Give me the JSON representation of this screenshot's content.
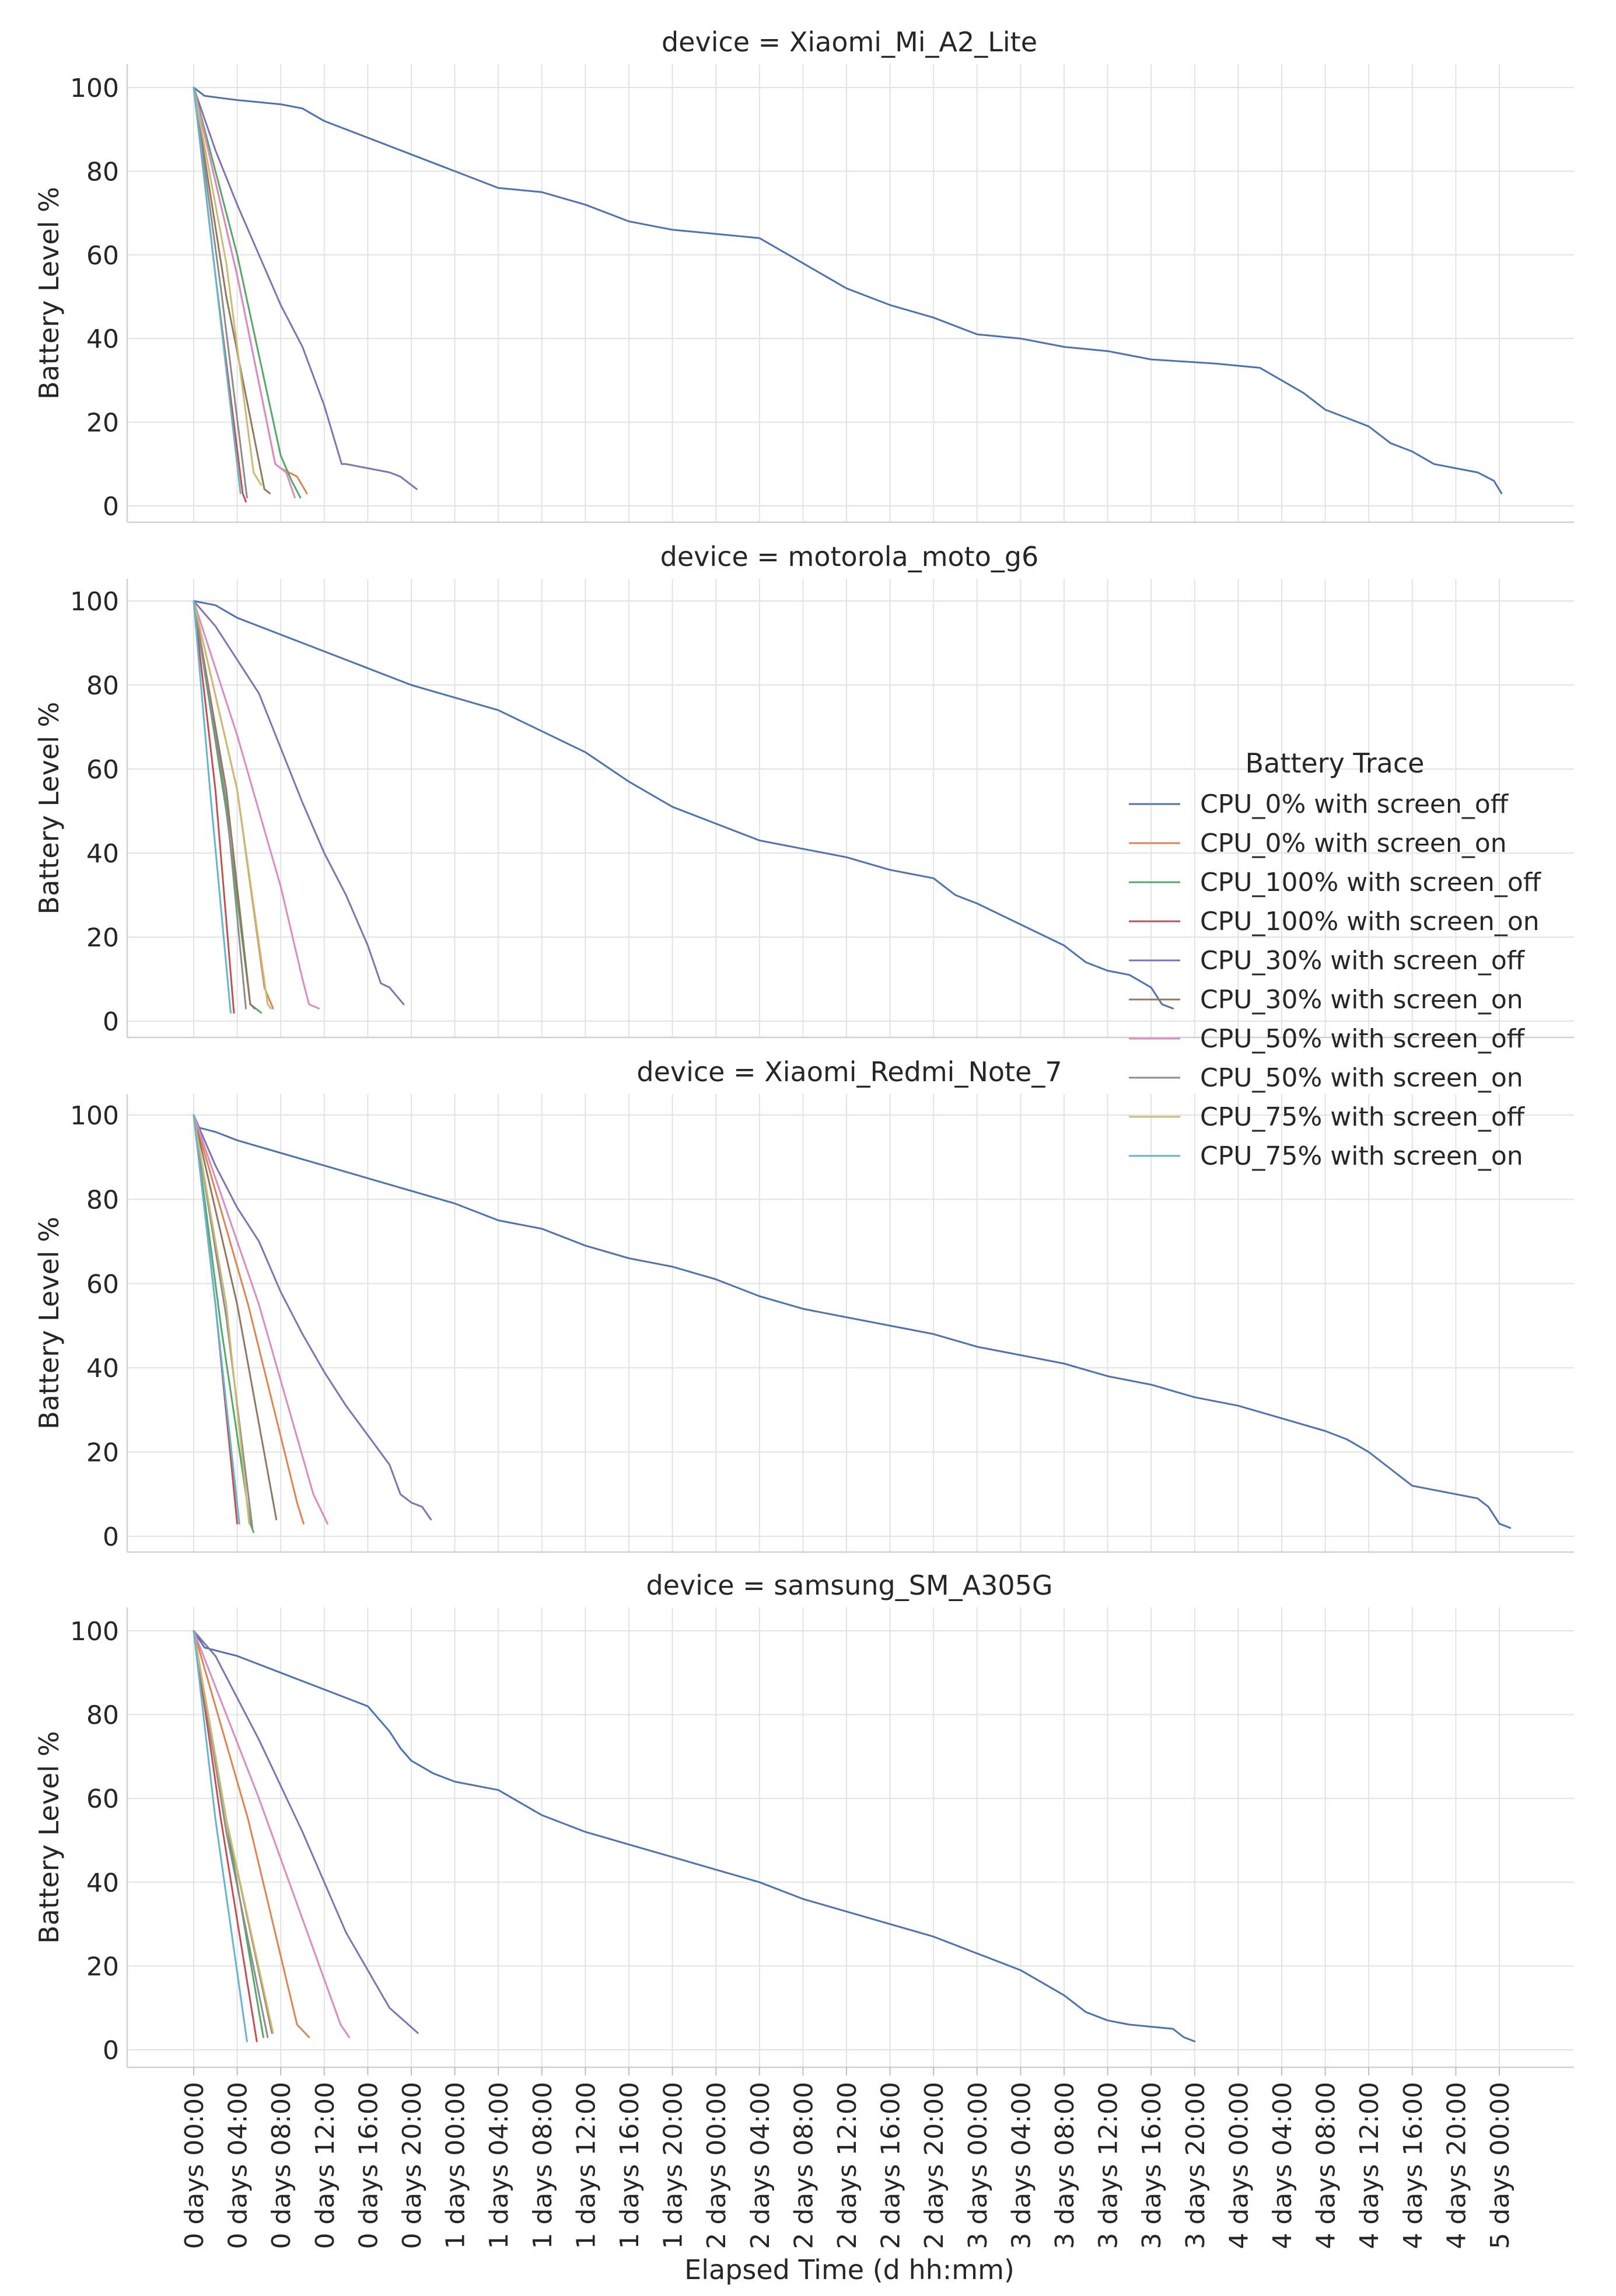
{
  "chart_data": {
    "type": "line",
    "xlabel": "Elapsed Time (d hh:mm)",
    "ylabel": "Battery Level %",
    "ylim": [
      0,
      100
    ],
    "yticks": [
      0,
      20,
      40,
      60,
      80,
      100
    ],
    "xlim_hours": [
      -3,
      128
    ],
    "x_tick_labels": [
      "0 days 00:00",
      "0 days 04:00",
      "0 days 08:00",
      "0 days 12:00",
      "0 days 16:00",
      "0 days 20:00",
      "1 days 00:00",
      "1 days 04:00",
      "1 days 08:00",
      "1 days 12:00",
      "1 days 16:00",
      "1 days 20:00",
      "2 days 00:00",
      "2 days 04:00",
      "2 days 08:00",
      "2 days 12:00",
      "2 days 16:00",
      "2 days 20:00",
      "3 days 00:00",
      "3 days 04:00",
      "3 days 08:00",
      "3 days 12:00",
      "3 days 16:00",
      "3 days 20:00",
      "4 days 00:00",
      "4 days 04:00",
      "4 days 08:00",
      "4 days 12:00",
      "4 days 16:00",
      "4 days 20:00",
      "5 days 00:00"
    ],
    "grid": true,
    "legend": {
      "title": "Battery Trace",
      "position": "right",
      "entries": [
        {
          "label": "CPU_0% with screen_off",
          "color": "#4c72b0"
        },
        {
          "label": "CPU_0% with screen_on",
          "color": "#dd8452"
        },
        {
          "label": "CPU_100% with screen_off",
          "color": "#55a868"
        },
        {
          "label": "CPU_100% with screen_on",
          "color": "#c44e52"
        },
        {
          "label": "CPU_30% with screen_off",
          "color": "#8172b3"
        },
        {
          "label": "CPU_30% with screen_on",
          "color": "#937860"
        },
        {
          "label": "CPU_50% with screen_off",
          "color": "#da8bc3"
        },
        {
          "label": "CPU_50% with screen_on",
          "color": "#8c8c8c"
        },
        {
          "label": "CPU_75% with screen_off",
          "color": "#ccb974"
        },
        {
          "label": "CPU_75% with screen_on",
          "color": "#64b5cd"
        }
      ]
    },
    "panels": [
      {
        "title": "device = Xiaomi_Mi_A2_Lite",
        "series": [
          {
            "name": "CPU_0% with screen_off",
            "x": [
              0,
              1,
              4,
              8,
              10,
              12,
              16,
              20,
              24,
              28,
              32,
              36,
              40,
              44,
              48,
              52,
              56,
              60,
              64,
              68,
              72,
              76,
              80,
              84,
              88,
              94,
              98,
              100,
              102,
              104,
              106,
              108,
              110,
              112,
              114,
              116,
              118,
              119.5,
              120.2
            ],
            "y": [
              100,
              98,
              97,
              96,
              95,
              92,
              88,
              84,
              80,
              76,
              75,
              72,
              68,
              66,
              65,
              64,
              58,
              52,
              48,
              45,
              41,
              40,
              38,
              37,
              35,
              34,
              33,
              30,
              27,
              23,
              21,
              19,
              15,
              13,
              10,
              9,
              8,
              6,
              3
            ]
          },
          {
            "name": "CPU_0% with screen_on",
            "x": [
              0,
              4,
              7.5,
              8,
              9.5,
              10.4
            ],
            "y": [
              100,
              55,
              10,
              9,
              7,
              3
            ]
          },
          {
            "name": "CPU_100% with screen_off",
            "x": [
              0,
              4,
              8,
              9,
              9.8
            ],
            "y": [
              100,
              60,
              12,
              6,
              2
            ]
          },
          {
            "name": "CPU_100% with screen_on",
            "x": [
              0,
              2,
              4.5,
              4.8
            ],
            "y": [
              100,
              55,
              3,
              1
            ]
          },
          {
            "name": "CPU_30% with screen_off",
            "x": [
              0,
              2,
              4,
              6,
              8,
              10,
              12,
              13.6,
              14,
              16,
              18,
              19,
              20.5
            ],
            "y": [
              100,
              85,
              72,
              60,
              48,
              38,
              24,
              10,
              10,
              9,
              8,
              7,
              4
            ]
          },
          {
            "name": "CPU_30% with screen_on",
            "x": [
              0,
              3,
              6.5,
              7
            ],
            "y": [
              100,
              50,
              4,
              3
            ]
          },
          {
            "name": "CPU_50% with screen_off",
            "x": [
              0,
              4,
              7.5,
              8.5,
              9.3
            ],
            "y": [
              100,
              55,
              10,
              8,
              2
            ]
          },
          {
            "name": "CPU_50% with screen_on",
            "x": [
              0,
              2.5,
              4.9
            ],
            "y": [
              100,
              52,
              2
            ]
          },
          {
            "name": "CPU_75% with screen_off",
            "x": [
              0,
              3,
              5.5,
              6.2
            ],
            "y": [
              100,
              58,
              8,
              5
            ]
          },
          {
            "name": "CPU_75% with screen_on",
            "x": [
              0,
              2,
              4.3
            ],
            "y": [
              100,
              55,
              3
            ]
          }
        ]
      },
      {
        "title": "device = motorola_moto_g6",
        "series": [
          {
            "name": "CPU_0% with screen_off",
            "x": [
              0,
              2,
              4,
              8,
              12,
              16,
              20,
              24,
              28,
              32,
              36,
              40,
              44,
              48,
              52,
              56,
              60,
              64,
              66,
              68,
              70,
              72,
              76,
              80,
              82,
              84,
              86,
              88,
              89,
              90
            ],
            "y": [
              100,
              99,
              96,
              92,
              88,
              84,
              80,
              77,
              74,
              69,
              64,
              57,
              51,
              47,
              43,
              41,
              39,
              36,
              35,
              34,
              30,
              28,
              23,
              18,
              14,
              12,
              11,
              8,
              4,
              3
            ]
          },
          {
            "name": "CPU_0% with screen_on",
            "x": [
              0,
              4,
              6.5,
              7.3
            ],
            "y": [
              100,
              55,
              8,
              3
            ]
          },
          {
            "name": "CPU_100% with screen_off",
            "x": [
              0,
              3,
              5.2,
              6.2
            ],
            "y": [
              100,
              50,
              4,
              2
            ]
          },
          {
            "name": "CPU_100% with screen_on",
            "x": [
              0,
              2,
              3.7
            ],
            "y": [
              100,
              55,
              2
            ]
          },
          {
            "name": "CPU_30% with screen_off",
            "x": [
              0,
              2,
              6,
              8,
              10,
              12,
              14,
              16,
              17.2,
              18,
              19.3
            ],
            "y": [
              100,
              94,
              78,
              65,
              52,
              40,
              30,
              18,
              9,
              8,
              4
            ]
          },
          {
            "name": "CPU_30% with screen_on",
            "x": [
              0,
              3,
              5.2,
              5.6
            ],
            "y": [
              100,
              55,
              4,
              3
            ]
          },
          {
            "name": "CPU_50% with screen_off",
            "x": [
              0,
              4,
              8,
              10,
              10.6,
              11.5
            ],
            "y": [
              100,
              68,
              32,
              10,
              4,
              3
            ]
          },
          {
            "name": "CPU_50% with screen_on",
            "x": [
              0,
              3,
              4.8
            ],
            "y": [
              100,
              52,
              3
            ]
          },
          {
            "name": "CPU_75% with screen_off",
            "x": [
              0,
              4,
              6.8,
              7.1
            ],
            "y": [
              100,
              55,
              4,
              3
            ]
          },
          {
            "name": "CPU_75% with screen_on",
            "x": [
              0,
              1.5,
              3.4
            ],
            "y": [
              100,
              55,
              2
            ]
          }
        ]
      },
      {
        "title": "device = Xiaomi_Redmi_Note_7",
        "series": [
          {
            "name": "CPU_0% with screen_off",
            "x": [
              0,
              0.5,
              2,
              4,
              8,
              12,
              16,
              20,
              24,
              28,
              32,
              36,
              40,
              44,
              48,
              52,
              56,
              60,
              64,
              68,
              72,
              76,
              80,
              84,
              88,
              92,
              96,
              100,
              104,
              106,
              108,
              110,
              112,
              116,
              118,
              119,
              120,
              121
            ],
            "y": [
              100,
              97,
              96,
              94,
              91,
              88,
              85,
              82,
              79,
              75,
              73,
              69,
              66,
              64,
              61,
              57,
              54,
              52,
              50,
              48,
              45,
              43,
              41,
              38,
              36,
              33,
              31,
              28,
              25,
              23,
              20,
              16,
              12,
              10,
              9,
              7,
              3,
              2
            ]
          },
          {
            "name": "CPU_0% with screen_on",
            "x": [
              0,
              5,
              9.5,
              10.1
            ],
            "y": [
              100,
              55,
              8,
              3
            ]
          },
          {
            "name": "CPU_100% with screen_off",
            "x": [
              0,
              2.5,
              5.2,
              5.5
            ],
            "y": [
              100,
              50,
              3,
              1
            ]
          },
          {
            "name": "CPU_100% with screen_on",
            "x": [
              0,
              2,
              4
            ],
            "y": [
              100,
              55,
              3
            ]
          },
          {
            "name": "CPU_30% with screen_off",
            "x": [
              0,
              2,
              4,
              6,
              8,
              10,
              12,
              14,
              16,
              18,
              19,
              20,
              21,
              21.8
            ],
            "y": [
              100,
              88,
              78,
              70,
              58,
              48,
              39,
              31,
              24,
              17,
              10,
              8,
              7,
              4
            ]
          },
          {
            "name": "CPU_30% with screen_on",
            "x": [
              0,
              4,
              7.6
            ],
            "y": [
              100,
              55,
              4
            ]
          },
          {
            "name": "CPU_50% with screen_off",
            "x": [
              0,
              6,
              11,
              12.3
            ],
            "y": [
              100,
              55,
              10,
              3
            ]
          },
          {
            "name": "CPU_50% with screen_on",
            "x": [
              0,
              3,
              5.4
            ],
            "y": [
              100,
              52,
              2
            ]
          },
          {
            "name": "CPU_75% with screen_off",
            "x": [
              0,
              3,
              5.1
            ],
            "y": [
              100,
              55,
              3
            ]
          },
          {
            "name": "CPU_75% with screen_on",
            "x": [
              0,
              2,
              4.2
            ],
            "y": [
              100,
              55,
              3
            ]
          }
        ]
      },
      {
        "title": "device = samsung_SM_A305G",
        "series": [
          {
            "name": "CPU_0% with screen_off",
            "x": [
              0,
              1,
              4,
              8,
              12,
              16,
              17,
              18,
              19,
              20,
              22,
              24,
              28,
              30,
              32,
              36,
              40,
              44,
              48,
              52,
              56,
              60,
              64,
              68,
              70,
              72,
              74,
              76,
              78,
              80,
              82,
              84,
              86,
              90,
              91,
              92
            ],
            "y": [
              100,
              96,
              94,
              90,
              86,
              82,
              79,
              76,
              72,
              69,
              66,
              64,
              62,
              59,
              56,
              52,
              49,
              46,
              43,
              40,
              36,
              33,
              30,
              27,
              25,
              23,
              21,
              19,
              16,
              13,
              9,
              7,
              6,
              5,
              3,
              2
            ]
          },
          {
            "name": "CPU_0% with screen_on",
            "x": [
              0,
              5,
              9.5,
              10.6
            ],
            "y": [
              100,
              55,
              6,
              3
            ]
          },
          {
            "name": "CPU_100% with screen_off",
            "x": [
              0,
              3,
              6.4
            ],
            "y": [
              100,
              55,
              3
            ]
          },
          {
            "name": "CPU_100% with screen_on",
            "x": [
              0,
              2.5,
              5.8
            ],
            "y": [
              100,
              55,
              2
            ]
          },
          {
            "name": "CPU_30% with screen_off",
            "x": [
              0,
              2,
              6,
              10,
              14,
              18,
              20.6
            ],
            "y": [
              100,
              94,
              74,
              52,
              28,
              10,
              4
            ]
          },
          {
            "name": "CPU_30% with screen_on",
            "x": [
              0,
              3,
              7.2
            ],
            "y": [
              100,
              55,
              4
            ]
          },
          {
            "name": "CPU_50% with screen_off",
            "x": [
              0,
              6,
              13.5,
              14.3
            ],
            "y": [
              100,
              60,
              6,
              3
            ]
          },
          {
            "name": "CPU_50% with screen_on",
            "x": [
              0,
              3,
              6.8
            ],
            "y": [
              100,
              52,
              3
            ]
          },
          {
            "name": "CPU_75% with screen_off",
            "x": [
              0,
              3,
              7.3
            ],
            "y": [
              100,
              55,
              4
            ]
          },
          {
            "name": "CPU_75% with screen_on",
            "x": [
              0,
              2,
              4.9
            ],
            "y": [
              100,
              55,
              2
            ]
          }
        ]
      }
    ]
  }
}
